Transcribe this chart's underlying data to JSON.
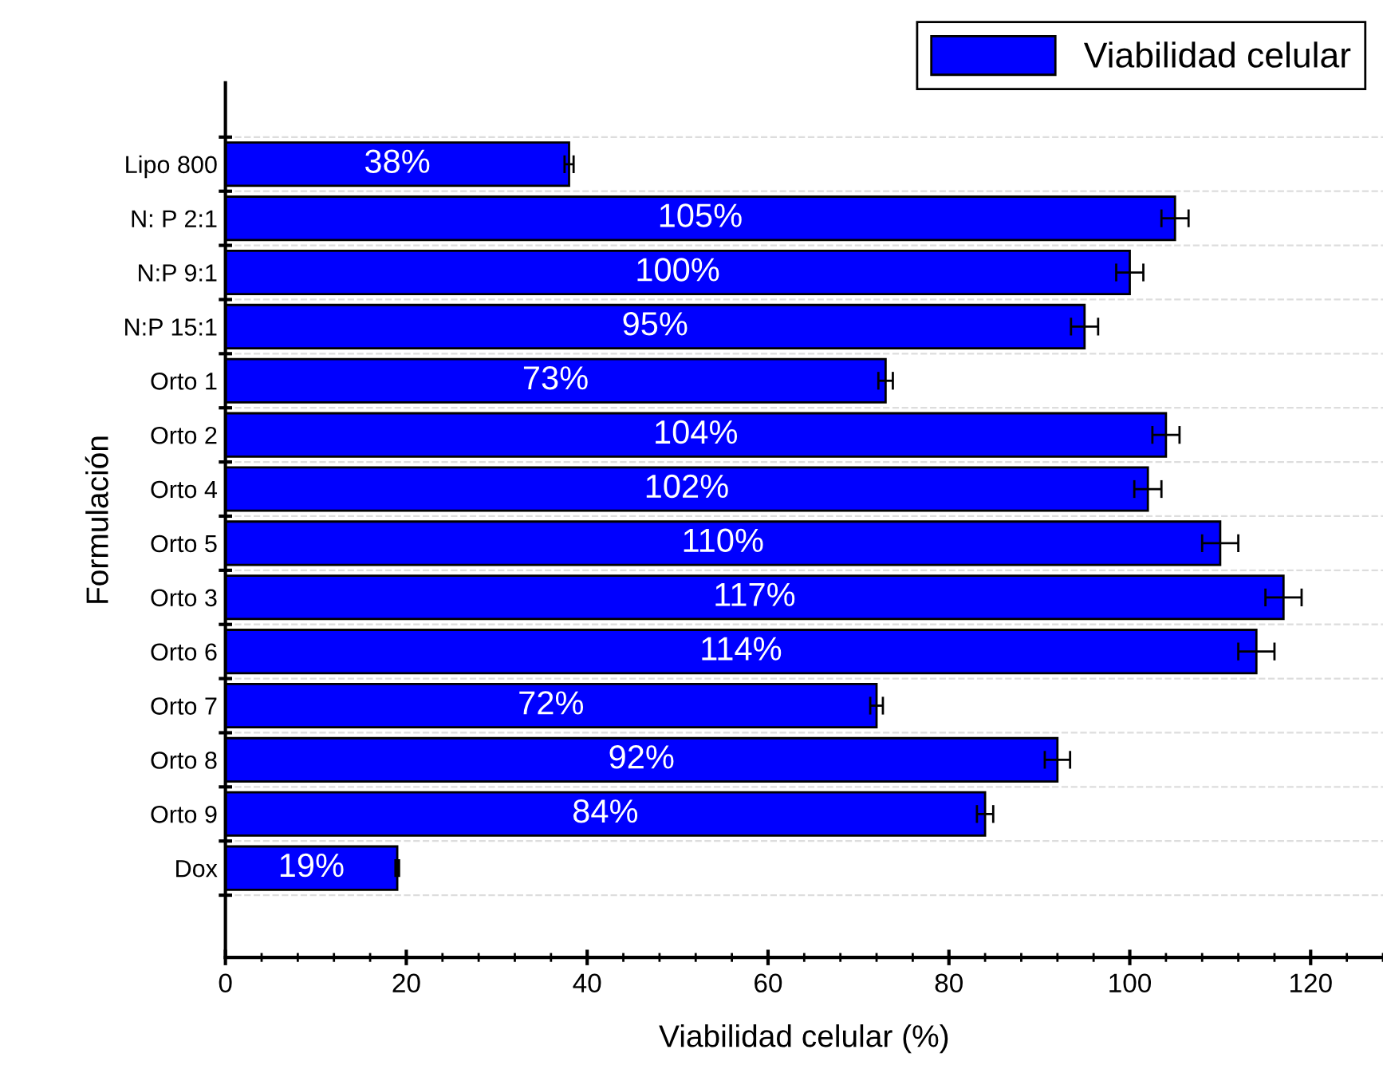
{
  "chart_data": {
    "type": "bar",
    "orientation": "horizontal",
    "xlabel": "Viabilidad celular (%)",
    "ylabel": "Formulación",
    "categories": [
      "Lipo 800",
      "N: P 2:1",
      "N:P 9:1",
      "N:P 15:1",
      "Orto 1",
      "Orto 2",
      "Orto 4",
      "Orto 5",
      "Orto 3",
      "Orto 6",
      "Orto 7",
      "Orto 8",
      "Orto 9",
      "Dox"
    ],
    "series": [
      {
        "name": "Viabilidad celular",
        "color": "#0000ff",
        "values": [
          38,
          105,
          100,
          95,
          73,
          104,
          102,
          110,
          117,
          114,
          72,
          92,
          84,
          19
        ],
        "errors": [
          0.5,
          1.5,
          1.5,
          1.5,
          0.8,
          1.5,
          1.5,
          2,
          2,
          2,
          0.7,
          1.4,
          0.9,
          0.2
        ],
        "value_labels": [
          "38%",
          "105%",
          "100%",
          "95%",
          "73%",
          "104%",
          "102%",
          "110%",
          "117%",
          "114%",
          "72%",
          "92%",
          "84%",
          "19%"
        ]
      }
    ],
    "xlim": [
      0,
      128
    ],
    "xticks": [
      0,
      20,
      40,
      60,
      80,
      100,
      120
    ],
    "grid": "y",
    "legend": "top right"
  }
}
